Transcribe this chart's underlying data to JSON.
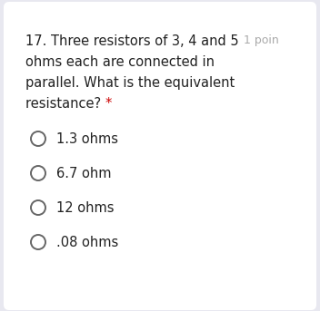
{
  "background_color": "#e8e8f0",
  "card_color": "#ffffff",
  "question_number": "17.",
  "question_text_line1": "Three resistors of 3, 4 and 5",
  "question_text_line2": "ohms each are connected in",
  "question_text_line3": "parallel. What is the equivalent",
  "question_text_line4": "resistance?",
  "asterisk": "*",
  "points_label": "1 poin",
  "options": [
    "1.3 ohms",
    "6.7 ohm",
    "12 ohms",
    ".08 ohms"
  ],
  "text_color": "#212121",
  "option_text_color": "#212121",
  "points_color": "#aaaaaa",
  "asterisk_color": "#cc0000",
  "circle_edge_color": "#666666",
  "font_size_question": 10.5,
  "font_size_options": 10.5,
  "font_size_points": 9.0
}
